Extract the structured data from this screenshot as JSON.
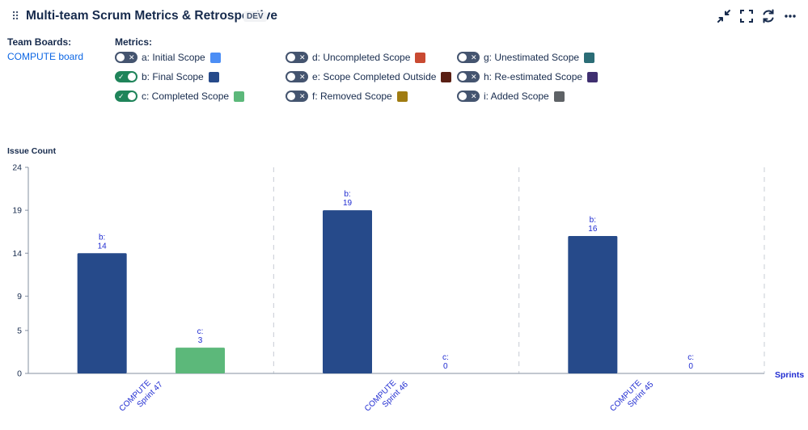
{
  "header": {
    "title": "Multi-team Scrum Metrics & Retrospective",
    "badge": "DEV",
    "drag_glyph": "⠿",
    "icons": [
      "minimize-icon",
      "fullscreen-icon",
      "refresh-icon",
      "more-icon"
    ]
  },
  "team_boards": {
    "label": "Team Boards:",
    "board": "COMPUTE board"
  },
  "metrics": {
    "label": "Metrics:",
    "items": [
      {
        "label": "a: Initial Scope",
        "enabled": false,
        "color": "#4c8ef5"
      },
      {
        "label": "b: Final Scope",
        "enabled": true,
        "color": "#264a8a"
      },
      {
        "label": "c: Completed Scope",
        "enabled": true,
        "color": "#5cb87a"
      },
      {
        "label": "d: Uncompleted Scope",
        "enabled": false,
        "color": "#c94a32"
      },
      {
        "label": "e: Scope Completed Outside",
        "enabled": false,
        "color": "#5a1f14"
      },
      {
        "label": "f: Removed Scope",
        "enabled": false,
        "color": "#a07c12"
      },
      {
        "label": "g: Unestimated Scope",
        "enabled": false,
        "color": "#2b6d76"
      },
      {
        "label": "h: Re-estimated Scope",
        "enabled": false,
        "color": "#3f2f70"
      },
      {
        "label": "i: Added Scope",
        "enabled": false,
        "color": "#5e6266"
      }
    ]
  },
  "chart_data": {
    "type": "bar",
    "ylabel": "Issue Count",
    "xlabel": "Sprints",
    "ylim": [
      0,
      24
    ],
    "yticks": [
      0,
      5,
      9,
      14,
      19,
      24
    ],
    "categories": [
      {
        "line1": "COMPUTE",
        "line2": "Sprint 47"
      },
      {
        "line1": "COMPUTE",
        "line2": "Sprint 46"
      },
      {
        "line1": "COMPUTE",
        "line2": "Sprint 45"
      }
    ],
    "series": [
      {
        "key": "b:",
        "color": "#264a8a",
        "values": [
          14,
          19,
          16
        ]
      },
      {
        "key": "c:",
        "color": "#5cb87a",
        "values": [
          3,
          0,
          0
        ]
      }
    ],
    "grid": "vertical-dashed",
    "label_color": "#1f2bd1"
  }
}
